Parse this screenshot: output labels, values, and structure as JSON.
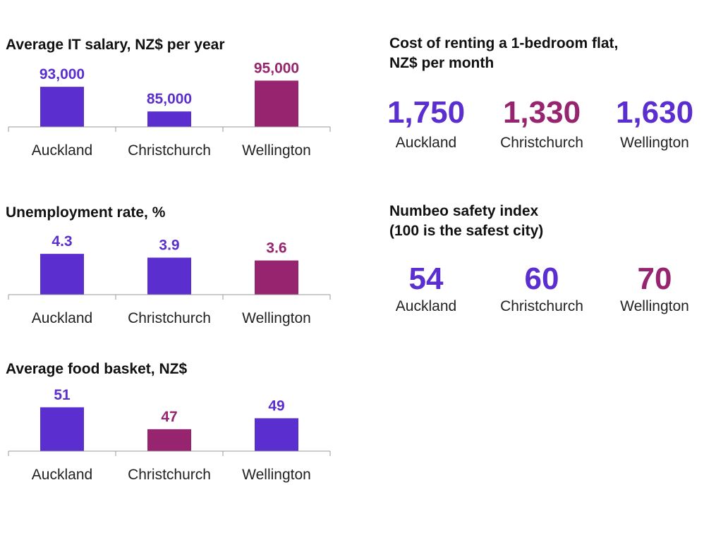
{
  "colors": {
    "blue": "#5b2fcf",
    "magenta": "#97246f",
    "axis": "#999999"
  },
  "chart_data": [
    {
      "type": "bar",
      "title": "Average IT salary, NZ$ per year",
      "categories": [
        "Auckland",
        "Christchurch",
        "Wellington"
      ],
      "values": [
        93000,
        85000,
        95000
      ],
      "value_labels": [
        "93,000",
        "85,000",
        "95,000"
      ],
      "bar_colors": [
        "blue",
        "blue",
        "magenta"
      ],
      "ylim": [
        80000,
        96000
      ]
    },
    {
      "type": "bar",
      "title": "Unemployment rate, %",
      "categories": [
        "Auckland",
        "Christchurch",
        "Wellington"
      ],
      "values": [
        4.3,
        3.9,
        3.6
      ],
      "value_labels": [
        "4.3",
        "3.9",
        "3.6"
      ],
      "bar_colors": [
        "blue",
        "blue",
        "magenta"
      ],
      "ylim": [
        0,
        5.2
      ]
    },
    {
      "type": "bar",
      "title": "Average food basket, NZ$",
      "categories": [
        "Auckland",
        "Christchurch",
        "Wellington"
      ],
      "values": [
        51,
        47,
        49
      ],
      "value_labels": [
        "51",
        "47",
        "49"
      ],
      "bar_colors": [
        "blue",
        "magenta",
        "blue"
      ],
      "ylim": [
        43,
        52
      ]
    },
    {
      "type": "table",
      "title": "Cost of renting a 1-bedroom flat,\nNZ$ per month",
      "categories": [
        "Auckland",
        "Christchurch",
        "Wellington"
      ],
      "values": [
        1750,
        1330,
        1630
      ],
      "value_labels": [
        "1,750",
        "1,330",
        "1,630"
      ],
      "value_colors": [
        "blue",
        "magenta",
        "blue"
      ]
    },
    {
      "type": "table",
      "title": "Numbeo safety index\n(100 is the safest city)",
      "categories": [
        "Auckland",
        "Christchurch",
        "Wellington"
      ],
      "values": [
        54,
        60,
        70
      ],
      "value_labels": [
        "54",
        "60",
        "70"
      ],
      "value_colors": [
        "blue",
        "blue",
        "magenta"
      ]
    }
  ]
}
